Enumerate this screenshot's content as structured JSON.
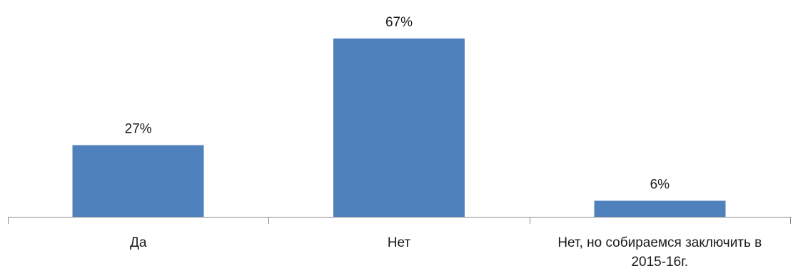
{
  "chart_data": {
    "type": "bar",
    "categories": [
      "Да",
      "Нет",
      "Нет, но собираемся заключить в 2015-16г."
    ],
    "category_label_lines": [
      [
        "Да"
      ],
      [
        "Нет"
      ],
      [
        "Нет, но собираемся заключить в",
        "2015-16г."
      ]
    ],
    "values": [
      27,
      67,
      6
    ],
    "data_labels": [
      "27%",
      "67%",
      "6%"
    ],
    "ylim": [
      0,
      67
    ],
    "title": "",
    "xlabel": "",
    "ylabel": "",
    "grid": false,
    "legend": "none",
    "bar_color": "#4f81bd",
    "axis_color": "#8c8c8c"
  }
}
